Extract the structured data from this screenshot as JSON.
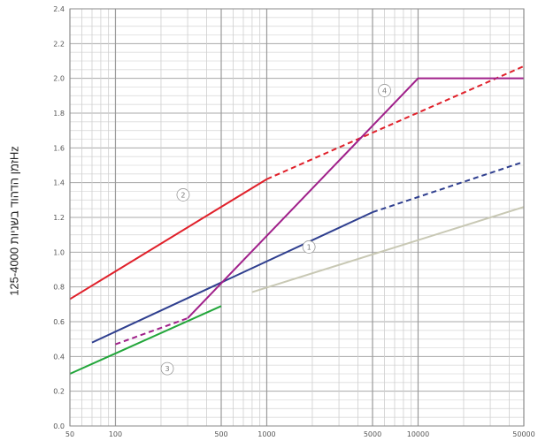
{
  "chart_data": {
    "type": "line",
    "title": "",
    "xlabel": "",
    "ylabel": "זמן הדהוד בשניות 125-4000Hz",
    "xscale": "log",
    "xlim": [
      50,
      50000
    ],
    "ylim": [
      0.0,
      2.4
    ],
    "grid": true,
    "x_ticks": [
      "50",
      "100",
      "500",
      "1000",
      "5000",
      "10000",
      "50000"
    ],
    "y_ticks": [
      "0.0",
      "0.2",
      "0.4",
      "0.6",
      "0.8",
      "1.0",
      "1.2",
      "1.4",
      "1.6",
      "1.8",
      "2.0",
      "2.2",
      "2.4"
    ],
    "series": [
      {
        "name": "1",
        "color": "#2f3f8f",
        "solid": {
          "x": [
            70,
            5000
          ],
          "y": [
            0.48,
            1.23
          ]
        },
        "dashed": {
          "x": [
            5000,
            50000
          ],
          "y": [
            1.23,
            1.52
          ]
        },
        "marker": {
          "x": 1900,
          "y": 1.03
        }
      },
      {
        "name": "2",
        "color": "#e0202a",
        "solid": {
          "x": [
            50,
            1000
          ],
          "y": [
            0.73,
            1.42
          ]
        },
        "dashed": {
          "x": [
            1000,
            50000
          ],
          "y": [
            1.42,
            2.07
          ]
        },
        "marker": {
          "x": 280,
          "y": 1.33
        }
      },
      {
        "name": "3",
        "color": "#22a63a",
        "solid": {
          "x": [
            50,
            500
          ],
          "y": [
            0.3,
            0.69
          ]
        },
        "dashed": null,
        "marker": {
          "x": 220,
          "y": 0.33
        }
      },
      {
        "name": "4",
        "color": "#a0208a",
        "solid": {
          "x": [
            300,
            10000,
            50000
          ],
          "y": [
            0.62,
            2.0,
            2.0
          ]
        },
        "dashed": {
          "x": [
            100,
            300
          ],
          "y": [
            0.47,
            0.62
          ]
        },
        "marker": {
          "x": 6000,
          "y": 1.93
        }
      },
      {
        "name": "",
        "color": "#c8c8b4",
        "solid": {
          "x": [
            800,
            50000
          ],
          "y": [
            0.77,
            1.26
          ]
        },
        "dashed": null,
        "marker": null
      }
    ]
  }
}
